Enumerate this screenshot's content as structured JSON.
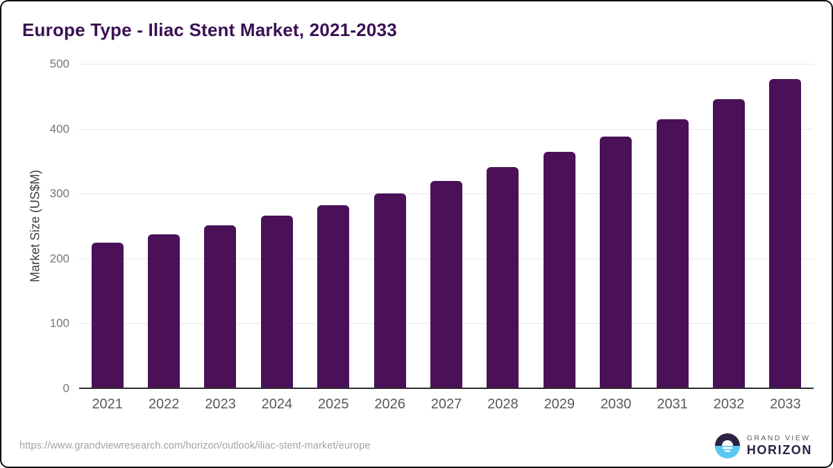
{
  "title": "Europe Type - Iliac Stent Market, 2021-2033",
  "footer": {
    "source_url": "https://www.grandviewresearch.com/horizon/outlook/iliac-stent-market/europe",
    "logo": {
      "line1": "GRAND VIEW",
      "line2": "HORIZON",
      "icon": "sunrise-circle-icon",
      "dark_color": "#2d2145",
      "blue_color": "#5bc8f2"
    }
  },
  "colors": {
    "bar": "#4a1158",
    "title": "#3b1053",
    "gridline": "#e8e8e8",
    "axis": "#2b2b2b",
    "tick_text": "#757575",
    "category_text": "#595959",
    "url_text": "#a3a3a3"
  },
  "chart_data": {
    "type": "bar",
    "title": "Europe Type - Iliac Stent Market, 2021-2033",
    "categories": [
      "2021",
      "2022",
      "2023",
      "2024",
      "2025",
      "2026",
      "2027",
      "2028",
      "2029",
      "2030",
      "2031",
      "2032",
      "2033"
    ],
    "values": [
      224,
      237,
      251,
      266,
      282,
      300,
      319,
      341,
      364,
      388,
      415,
      445,
      477
    ],
    "xlabel": "",
    "ylabel": "Market Size (US$M)",
    "ylim": [
      0,
      500
    ],
    "yticks": [
      0,
      100,
      200,
      300,
      400,
      500
    ],
    "grid": "horizontal",
    "legend": "none",
    "bar_color": "#4a1158"
  }
}
